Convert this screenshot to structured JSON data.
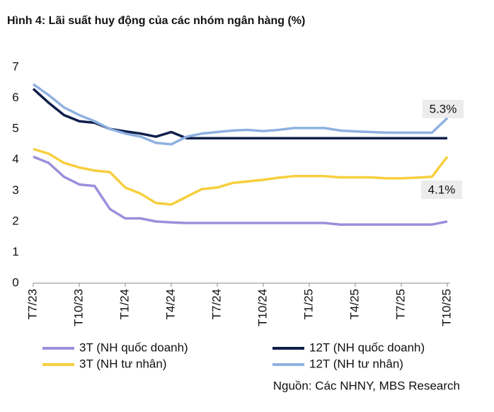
{
  "chart_data": {
    "type": "line",
    "title": "Hình 4: Lãi suất huy động của các nhóm ngân hàng (%)",
    "categories": [
      "T7/23",
      null,
      null,
      "T10/23",
      null,
      null,
      "T1/24",
      null,
      null,
      "T4/24",
      null,
      null,
      "T7/24",
      null,
      null,
      "T10/24",
      null,
      null,
      "T1/25",
      null,
      null,
      "T4/25",
      null,
      null,
      "T7/25",
      null,
      null,
      "T10/25"
    ],
    "ylim": [
      0,
      7
    ],
    "yticks": [
      0,
      1,
      2,
      3,
      4,
      5,
      6,
      7
    ],
    "grid": false,
    "series": [
      {
        "name": "3T (NH quốc doanh)",
        "color": "#9b8fdc",
        "values": [
          4.1,
          3.9,
          3.45,
          3.2,
          3.15,
          2.4,
          2.1,
          2.1,
          2.0,
          1.97,
          1.95,
          1.95,
          1.95,
          1.95,
          1.95,
          1.95,
          1.95,
          1.95,
          1.95,
          1.95,
          1.9,
          1.9,
          1.9,
          1.9,
          1.9,
          1.9,
          1.9,
          2.0
        ]
      },
      {
        "name": "12T (NH quốc doanh)",
        "color": "#0f1f4b",
        "values": [
          6.3,
          5.85,
          5.45,
          5.25,
          5.2,
          5.0,
          4.92,
          4.85,
          4.75,
          4.9,
          4.7,
          4.7,
          4.7,
          4.7,
          4.7,
          4.7,
          4.7,
          4.7,
          4.7,
          4.7,
          4.7,
          4.7,
          4.7,
          4.7,
          4.7,
          4.7,
          4.7,
          4.7
        ]
      },
      {
        "name": "3T (NH tư nhân)",
        "color": "#f7cf3e",
        "values": [
          4.35,
          4.2,
          3.9,
          3.75,
          3.65,
          3.6,
          3.1,
          2.9,
          2.6,
          2.55,
          2.8,
          3.05,
          3.1,
          3.25,
          3.3,
          3.35,
          3.42,
          3.47,
          3.47,
          3.47,
          3.43,
          3.43,
          3.43,
          3.4,
          3.4,
          3.42,
          3.45,
          4.1
        ]
      },
      {
        "name": "12T (NH tư nhân)",
        "color": "#8eb1e0",
        "values": [
          6.45,
          6.1,
          5.7,
          5.45,
          5.25,
          5.0,
          4.85,
          4.75,
          4.55,
          4.5,
          4.75,
          4.85,
          4.9,
          4.95,
          4.97,
          4.93,
          4.97,
          5.03,
          5.03,
          5.03,
          4.95,
          4.92,
          4.9,
          4.88,
          4.88,
          4.88,
          4.88,
          5.35
        ]
      }
    ],
    "annotations": [
      {
        "text": "5.3%"
      },
      {
        "text": "4.1%"
      }
    ],
    "source": "Nguồn: Các NHNY, MBS Research"
  }
}
